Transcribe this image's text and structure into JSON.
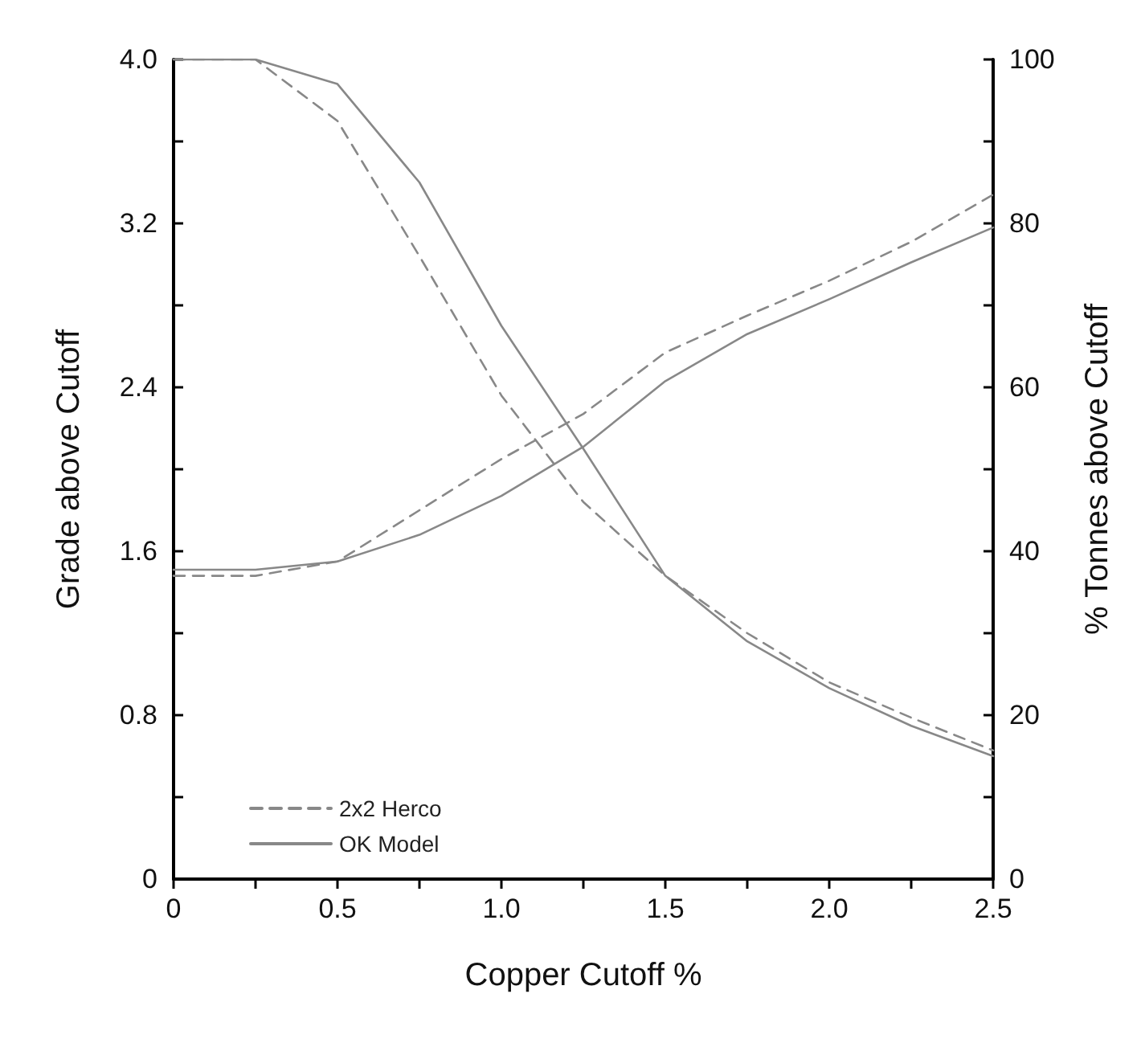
{
  "chart_data": {
    "type": "line",
    "xlabel": "Copper Cutoff %",
    "ylabel": "Grade above Cutoff",
    "y2label": "% Tonnes above Cutoff",
    "x": [
      0,
      0.25,
      0.5,
      0.75,
      1.0,
      1.25,
      1.5,
      1.75,
      2.0,
      2.25,
      2.5
    ],
    "series": [
      {
        "name": "2x2 Herco",
        "color": "#888888",
        "line_style": "dashed",
        "values": [
          1.48,
          1.48,
          1.55,
          1.8,
          2.05,
          2.27,
          2.57,
          2.75,
          2.92,
          3.11,
          3.34
        ]
      },
      {
        "name": "OK Model",
        "color": "#888888",
        "line_style": "solid",
        "values": [
          1.51,
          1.51,
          1.55,
          1.68,
          1.87,
          2.11,
          2.43,
          2.66,
          2.83,
          3.01,
          3.18
        ]
      },
      {
        "color": "#888888",
        "line_style": "dashed",
        "axis": "y2",
        "values": [
          100,
          100,
          92.5,
          76,
          59,
          46,
          37,
          30,
          24,
          19.7,
          15.7
        ]
      },
      {
        "color": "#888888",
        "line_style": "solid",
        "axis": "y2",
        "values": [
          100,
          100,
          97,
          85,
          67.5,
          52.5,
          37,
          29,
          23.3,
          18.7,
          15
        ]
      }
    ],
    "xlim": [
      0,
      2.5
    ],
    "xticks": [
      0,
      {
        "value": 0.25,
        "label": null
      },
      0.5,
      {
        "value": 0.75,
        "label": null
      },
      {
        "value": 1,
        "label": "1.0"
      },
      {
        "value": 1.25,
        "label": null
      },
      1.5,
      {
        "value": 1.75,
        "label": null
      },
      {
        "value": 2,
        "label": "2.0"
      },
      {
        "value": 2.25,
        "label": null
      },
      2.5
    ],
    "ylim": [
      0,
      4
    ],
    "yticks": [
      0,
      {
        "value": 0.4,
        "label": null
      },
      0.8,
      {
        "value": 1.2,
        "label": null
      },
      1.6,
      {
        "value": 2.0,
        "label": null
      },
      2.4,
      {
        "value": 2.8,
        "label": null
      },
      3.2,
      {
        "value": 3.6,
        "label": null
      },
      {
        "value": 4,
        "label": "4.0"
      }
    ],
    "y2lim": [
      0,
      100
    ],
    "y2ticks": [
      0,
      {
        "value": 10,
        "label": null
      },
      20,
      {
        "value": 30,
        "label": null
      },
      40,
      {
        "value": 50,
        "label": null
      },
      60,
      {
        "value": 70,
        "label": null
      },
      80,
      {
        "value": 90,
        "label": null
      },
      100
    ],
    "legend": "bottom left",
    "marker": "none"
  }
}
